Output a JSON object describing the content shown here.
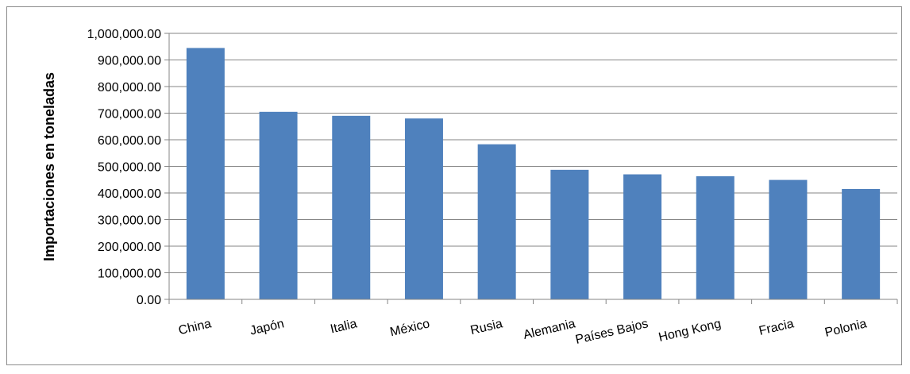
{
  "chart_data": {
    "type": "bar",
    "title": "",
    "xlabel": "",
    "ylabel": "Importaciones en toneladas",
    "categories": [
      "China",
      "Japón",
      "Italia",
      "México",
      "Rusia",
      "Alemania",
      "Países Bajos",
      "Hong Kong",
      "Fracia",
      "Polonia"
    ],
    "values": [
      945000,
      705000,
      690000,
      680000,
      583000,
      487000,
      470000,
      463000,
      449000,
      415000
    ],
    "ylim": [
      0,
      1000000
    ],
    "yticks": [
      0,
      100000,
      200000,
      300000,
      400000,
      500000,
      600000,
      700000,
      800000,
      900000,
      1000000
    ],
    "ytick_labels": [
      "0.00",
      "100,000.00",
      "200,000.00",
      "300,000.00",
      "400,000.00",
      "500,000.00",
      "600,000.00",
      "700,000.00",
      "800,000.00",
      "900,000.00",
      "1,000,000.00"
    ],
    "grid": true,
    "legend": "none",
    "bar_color": "#4f81bd",
    "grid_color": "#868686"
  }
}
